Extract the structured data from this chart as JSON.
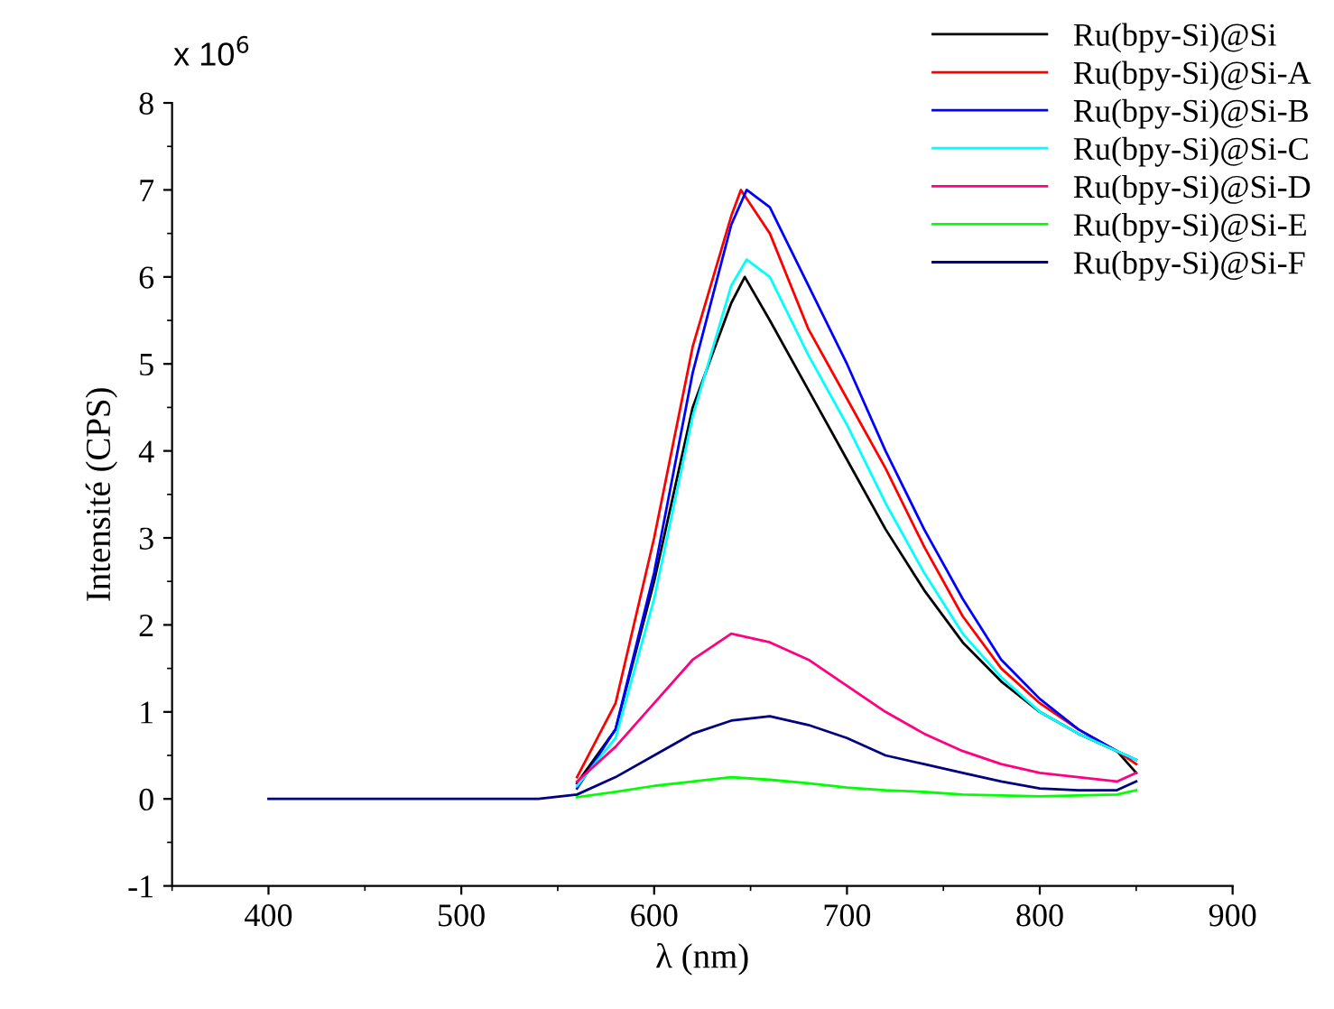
{
  "chart_data": {
    "type": "line",
    "xlabel": "λ (nm)",
    "ylabel": "Intensité (CPS)",
    "annotations": [
      "x 10$^{6}$"
    ],
    "xlim": [
      350,
      900
    ],
    "xticks": [
      400,
      500,
      600,
      700,
      800,
      900
    ],
    "ylim": [
      -1,
      8
    ],
    "yticks": [
      -1,
      0,
      1,
      2,
      3,
      4,
      5,
      6,
      7,
      8
    ],
    "grid": false,
    "legend": "top right",
    "marker": "none",
    "line_style": "solid",
    "series": [
      {
        "name": "Ru(bpy-Si)@Si",
        "color": "#000000",
        "x": [
          560,
          580,
          600,
          620,
          640,
          647,
          660,
          680,
          700,
          720,
          740,
          760,
          780,
          800,
          820,
          840,
          850
        ],
        "values": [
          0.18,
          0.8,
          2.5,
          4.5,
          5.7,
          6.0,
          5.5,
          4.7,
          3.9,
          3.1,
          2.4,
          1.8,
          1.35,
          1.0,
          0.75,
          0.55,
          0.3
        ]
      },
      {
        "name": "Ru(bpy-Si)@Si-A",
        "color": "#ff0000",
        "x": [
          560,
          580,
          600,
          620,
          640,
          645,
          660,
          680,
          700,
          720,
          740,
          760,
          780,
          800,
          820,
          840,
          850
        ],
        "values": [
          0.25,
          1.1,
          3.0,
          5.2,
          6.7,
          7.0,
          6.5,
          5.4,
          4.6,
          3.8,
          2.9,
          2.1,
          1.5,
          1.1,
          0.8,
          0.55,
          0.4
        ]
      },
      {
        "name": "Ru(bpy-Si)@Si-B",
        "color": "#0000ff",
        "x": [
          560,
          580,
          600,
          620,
          640,
          648,
          660,
          680,
          700,
          720,
          740,
          760,
          780,
          800,
          820,
          840,
          850
        ],
        "values": [
          0.12,
          0.8,
          2.6,
          4.9,
          6.6,
          7.0,
          6.8,
          5.9,
          5.0,
          4.0,
          3.1,
          2.3,
          1.6,
          1.15,
          0.8,
          0.55,
          0.45
        ]
      },
      {
        "name": "Ru(bpy-Si)@Si-C",
        "color": "#00ffff",
        "x": [
          560,
          580,
          600,
          620,
          640,
          648,
          660,
          680,
          700,
          720,
          740,
          760,
          780,
          800,
          820,
          840,
          850
        ],
        "values": [
          0.15,
          0.7,
          2.3,
          4.4,
          5.9,
          6.2,
          6.0,
          5.1,
          4.3,
          3.4,
          2.6,
          1.9,
          1.4,
          1.0,
          0.75,
          0.55,
          0.45
        ]
      },
      {
        "name": "Ru(bpy-Si)@Si-D",
        "color": "#ff0080",
        "x": [
          560,
          580,
          600,
          620,
          640,
          660,
          680,
          700,
          720,
          740,
          760,
          780,
          800,
          820,
          840,
          850
        ],
        "values": [
          0.2,
          0.6,
          1.1,
          1.6,
          1.9,
          1.8,
          1.6,
          1.3,
          1.0,
          0.75,
          0.55,
          0.4,
          0.3,
          0.25,
          0.2,
          0.3
        ]
      },
      {
        "name": "Ru(bpy-Si)@Si-E",
        "color": "#00ff00",
        "x": [
          560,
          580,
          600,
          620,
          640,
          660,
          680,
          700,
          720,
          740,
          760,
          800,
          840,
          850
        ],
        "values": [
          0.02,
          0.08,
          0.15,
          0.2,
          0.25,
          0.22,
          0.18,
          0.13,
          0.1,
          0.08,
          0.05,
          0.03,
          0.05,
          0.1
        ]
      },
      {
        "name": "Ru(bpy-Si)@Si-F",
        "color": "#000080",
        "x": [
          400,
          500,
          540,
          560,
          580,
          600,
          620,
          640,
          660,
          680,
          700,
          720,
          740,
          760,
          780,
          800,
          820,
          840,
          850
        ],
        "values": [
          0,
          0,
          0,
          0.05,
          0.25,
          0.5,
          0.75,
          0.9,
          0.95,
          0.85,
          0.7,
          0.5,
          0.4,
          0.3,
          0.2,
          0.12,
          0.1,
          0.1,
          0.2
        ]
      }
    ]
  }
}
